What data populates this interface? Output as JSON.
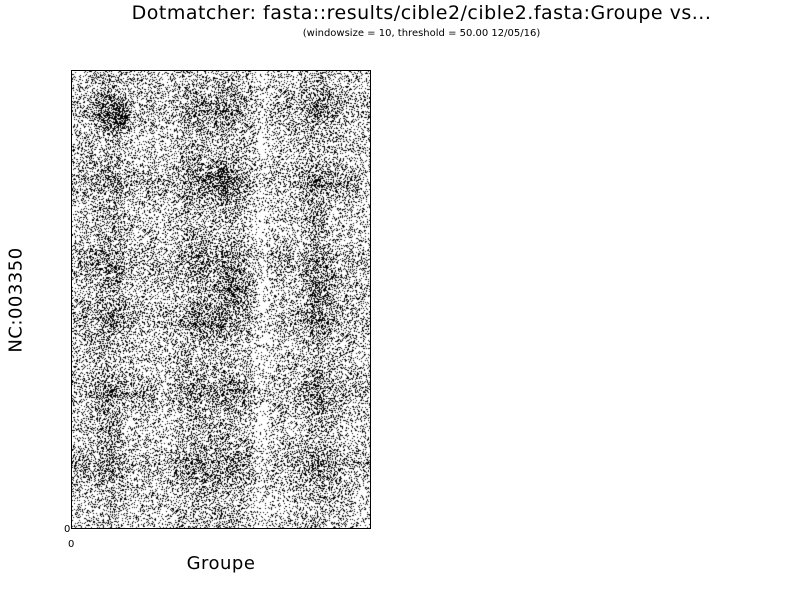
{
  "chart_data": {
    "type": "scatter",
    "title": "Dotmatcher: fasta::results/cible2/cible2.fasta:Groupe vs...",
    "subtitle": "(windowsize = 10, threshold = 50.00  12/05/16)",
    "xlabel": "Groupe",
    "ylabel": "NC:003350",
    "x_ticks": [
      "0"
    ],
    "y_ticks": [
      "0"
    ],
    "windowsize": 10,
    "threshold": 50.0,
    "date": "12/05/16",
    "point_color": "#000000",
    "dense_bands": {
      "x_centers_fraction": [
        0.12,
        0.42,
        0.52,
        0.82
      ],
      "y_centers_fraction": [
        0.08,
        0.24,
        0.42,
        0.54,
        0.7,
        0.86
      ],
      "hot_spots_fraction": [
        [
          0.5,
          0.24
        ],
        [
          0.53,
          0.48
        ],
        [
          0.82,
          0.48
        ],
        [
          0.15,
          0.1
        ]
      ]
    }
  }
}
